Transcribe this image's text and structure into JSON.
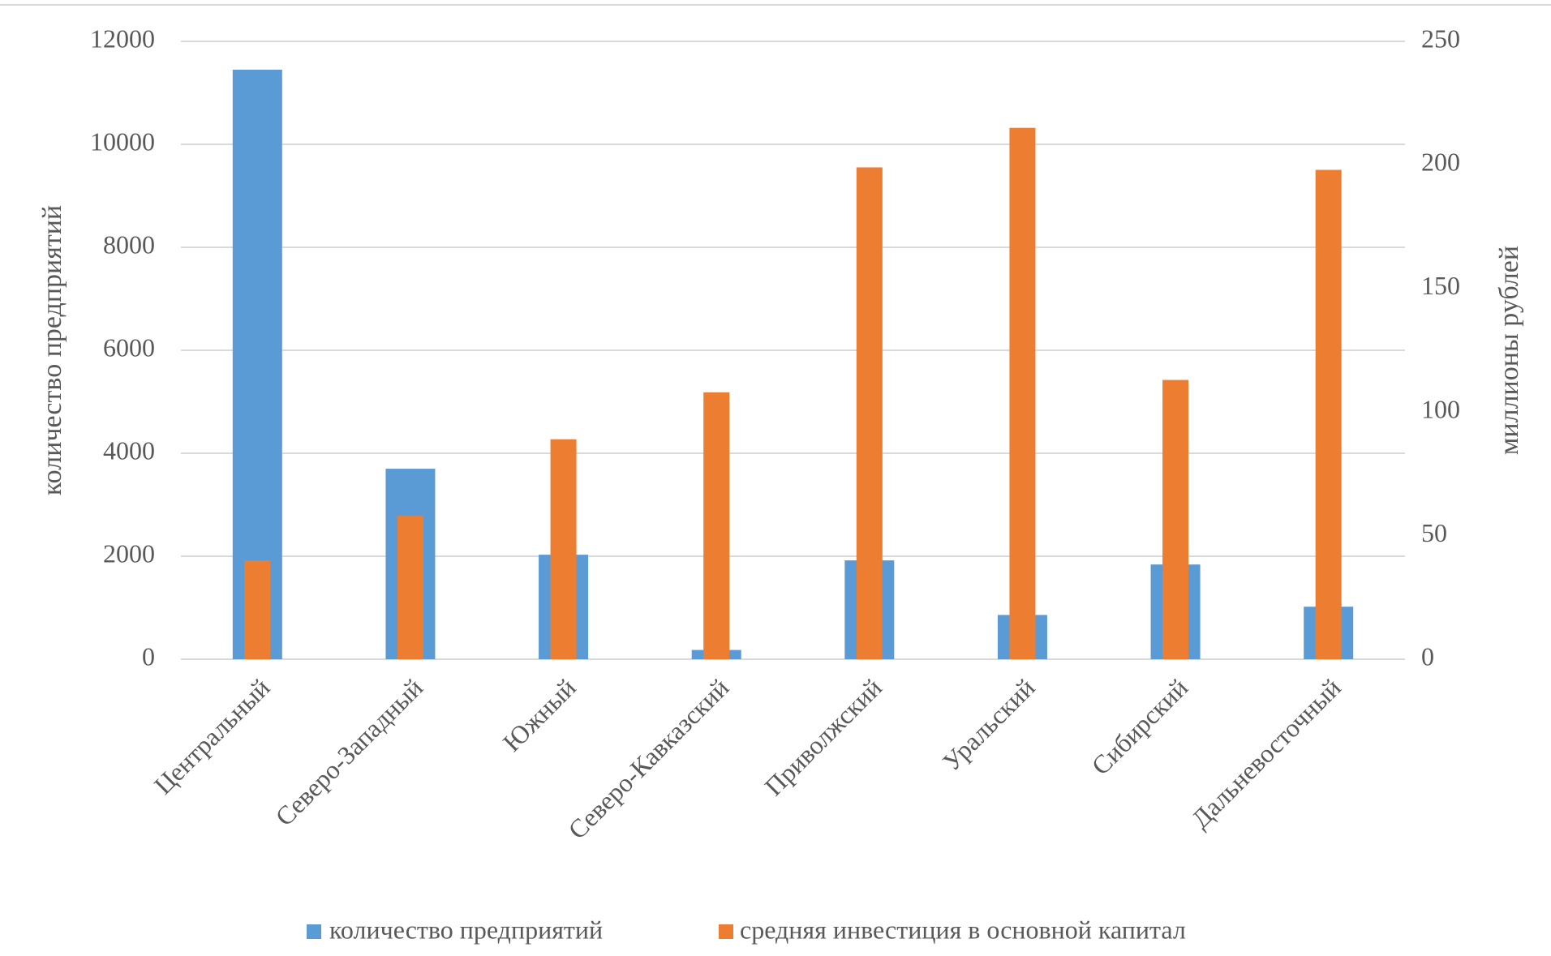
{
  "chart_data": {
    "type": "bar",
    "categories": [
      "Центральный",
      "Северо-Западный",
      "Южный",
      "Северо-Кавказский",
      "Приволжский",
      "Уральский",
      "Сибирский",
      "Дальневосточный"
    ],
    "series": [
      {
        "name": "количество предприятий",
        "color": "#5b9bd5",
        "values": [
          11450,
          3700,
          2030,
          180,
          1920,
          860,
          1840,
          1020
        ]
      },
      {
        "name": "средняя инвестиция в основной капитал",
        "color": "#ed7d31",
        "axis": "y2",
        "values": [
          40,
          58,
          89,
          108,
          199,
          215,
          113,
          198
        ]
      }
    ],
    "ylabel": "количество предприятий",
    "y2label": "миллионы рублей",
    "ylim": [
      0,
      12000
    ],
    "yticks": [
      0,
      2000,
      4000,
      6000,
      8000,
      10000,
      12000
    ],
    "y2lim": [
      0,
      250
    ],
    "y2ticks": [
      0,
      50,
      100,
      150,
      200,
      250
    ],
    "grid": true,
    "legend": "bottom"
  }
}
